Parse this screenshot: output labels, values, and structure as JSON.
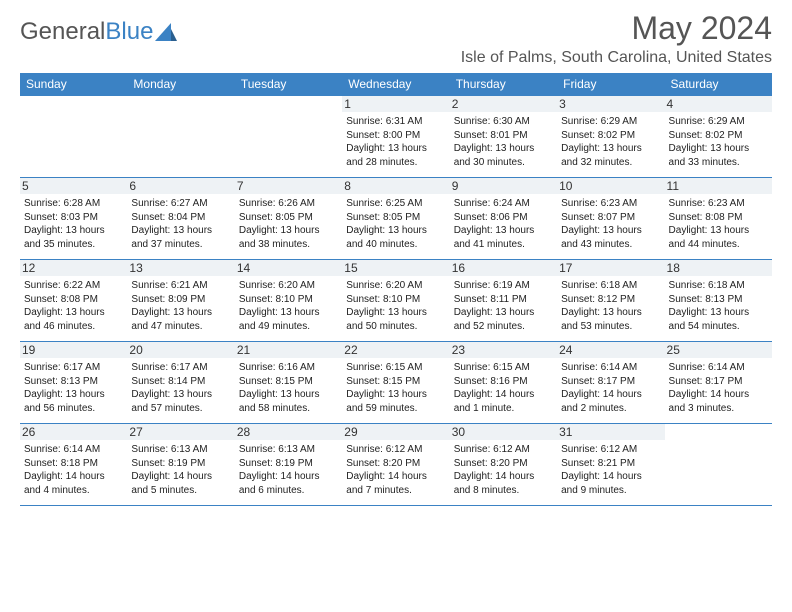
{
  "logo": {
    "word1": "General",
    "word2": "Blue"
  },
  "title": "May 2024",
  "location": "Isle of Palms, South Carolina, United States",
  "colors": {
    "accent": "#3b82c4",
    "text": "#555",
    "cellHeader": "#eef2f5"
  },
  "day_names": [
    "Sunday",
    "Monday",
    "Tuesday",
    "Wednesday",
    "Thursday",
    "Friday",
    "Saturday"
  ],
  "weeks": [
    [
      {
        "empty": true
      },
      {
        "empty": true
      },
      {
        "empty": true
      },
      {
        "n": "1",
        "sr": "6:31 AM",
        "ss": "8:00 PM",
        "dl": "13 hours and 28 minutes."
      },
      {
        "n": "2",
        "sr": "6:30 AM",
        "ss": "8:01 PM",
        "dl": "13 hours and 30 minutes."
      },
      {
        "n": "3",
        "sr": "6:29 AM",
        "ss": "8:02 PM",
        "dl": "13 hours and 32 minutes."
      },
      {
        "n": "4",
        "sr": "6:29 AM",
        "ss": "8:02 PM",
        "dl": "13 hours and 33 minutes."
      }
    ],
    [
      {
        "n": "5",
        "sr": "6:28 AM",
        "ss": "8:03 PM",
        "dl": "13 hours and 35 minutes."
      },
      {
        "n": "6",
        "sr": "6:27 AM",
        "ss": "8:04 PM",
        "dl": "13 hours and 37 minutes."
      },
      {
        "n": "7",
        "sr": "6:26 AM",
        "ss": "8:05 PM",
        "dl": "13 hours and 38 minutes."
      },
      {
        "n": "8",
        "sr": "6:25 AM",
        "ss": "8:05 PM",
        "dl": "13 hours and 40 minutes."
      },
      {
        "n": "9",
        "sr": "6:24 AM",
        "ss": "8:06 PM",
        "dl": "13 hours and 41 minutes."
      },
      {
        "n": "10",
        "sr": "6:23 AM",
        "ss": "8:07 PM",
        "dl": "13 hours and 43 minutes."
      },
      {
        "n": "11",
        "sr": "6:23 AM",
        "ss": "8:08 PM",
        "dl": "13 hours and 44 minutes."
      }
    ],
    [
      {
        "n": "12",
        "sr": "6:22 AM",
        "ss": "8:08 PM",
        "dl": "13 hours and 46 minutes."
      },
      {
        "n": "13",
        "sr": "6:21 AM",
        "ss": "8:09 PM",
        "dl": "13 hours and 47 minutes."
      },
      {
        "n": "14",
        "sr": "6:20 AM",
        "ss": "8:10 PM",
        "dl": "13 hours and 49 minutes."
      },
      {
        "n": "15",
        "sr": "6:20 AM",
        "ss": "8:10 PM",
        "dl": "13 hours and 50 minutes."
      },
      {
        "n": "16",
        "sr": "6:19 AM",
        "ss": "8:11 PM",
        "dl": "13 hours and 52 minutes."
      },
      {
        "n": "17",
        "sr": "6:18 AM",
        "ss": "8:12 PM",
        "dl": "13 hours and 53 minutes."
      },
      {
        "n": "18",
        "sr": "6:18 AM",
        "ss": "8:13 PM",
        "dl": "13 hours and 54 minutes."
      }
    ],
    [
      {
        "n": "19",
        "sr": "6:17 AM",
        "ss": "8:13 PM",
        "dl": "13 hours and 56 minutes."
      },
      {
        "n": "20",
        "sr": "6:17 AM",
        "ss": "8:14 PM",
        "dl": "13 hours and 57 minutes."
      },
      {
        "n": "21",
        "sr": "6:16 AM",
        "ss": "8:15 PM",
        "dl": "13 hours and 58 minutes."
      },
      {
        "n": "22",
        "sr": "6:15 AM",
        "ss": "8:15 PM",
        "dl": "13 hours and 59 minutes."
      },
      {
        "n": "23",
        "sr": "6:15 AM",
        "ss": "8:16 PM",
        "dl": "14 hours and 1 minute."
      },
      {
        "n": "24",
        "sr": "6:14 AM",
        "ss": "8:17 PM",
        "dl": "14 hours and 2 minutes."
      },
      {
        "n": "25",
        "sr": "6:14 AM",
        "ss": "8:17 PM",
        "dl": "14 hours and 3 minutes."
      }
    ],
    [
      {
        "n": "26",
        "sr": "6:14 AM",
        "ss": "8:18 PM",
        "dl": "14 hours and 4 minutes."
      },
      {
        "n": "27",
        "sr": "6:13 AM",
        "ss": "8:19 PM",
        "dl": "14 hours and 5 minutes."
      },
      {
        "n": "28",
        "sr": "6:13 AM",
        "ss": "8:19 PM",
        "dl": "14 hours and 6 minutes."
      },
      {
        "n": "29",
        "sr": "6:12 AM",
        "ss": "8:20 PM",
        "dl": "14 hours and 7 minutes."
      },
      {
        "n": "30",
        "sr": "6:12 AM",
        "ss": "8:20 PM",
        "dl": "14 hours and 8 minutes."
      },
      {
        "n": "31",
        "sr": "6:12 AM",
        "ss": "8:21 PM",
        "dl": "14 hours and 9 minutes."
      },
      {
        "empty": true
      }
    ]
  ],
  "labels": {
    "sunrise": "Sunrise:",
    "sunset": "Sunset:",
    "daylight": "Daylight:"
  }
}
